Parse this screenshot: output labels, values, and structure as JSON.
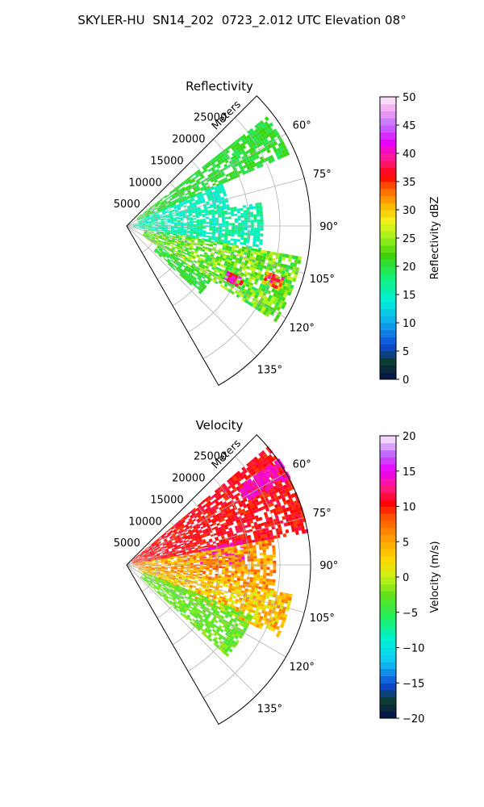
{
  "suptitle": "SKYLER-HU  SN14_202  0723_2.012 UTC Elevation 08°",
  "chart_data": [
    {
      "type": "heatmap",
      "projection": "polar-sector",
      "title": "Reflectivity",
      "range_label": "Meters",
      "range_ticks": [
        "5000",
        "10000",
        "15000",
        "20000",
        "25000"
      ],
      "range_tick_values": [
        5000,
        10000,
        15000,
        20000,
        25000
      ],
      "range_max": 30000,
      "azimuth_min": 45,
      "azimuth_max": 150,
      "azimuth_ticks": [
        "60°",
        "75°",
        "90°",
        "105°",
        "120°",
        "135°"
      ],
      "azimuth_tick_values": [
        60,
        75,
        90,
        105,
        120,
        135
      ],
      "grid": true,
      "colorbar": {
        "label": "Reflectivity dBZ",
        "range": [
          0,
          50
        ],
        "ticks": [
          "0",
          "5",
          "10",
          "15",
          "20",
          "25",
          "30",
          "35",
          "40",
          "45",
          "50"
        ],
        "tick_values": [
          0,
          5,
          10,
          15,
          20,
          25,
          30,
          35,
          40,
          45,
          50
        ]
      },
      "features": [
        {
          "az_from": 52,
          "az_to": 66,
          "r_from": 2000,
          "r_to": 29000,
          "value_from": 19,
          "value_to": 22
        },
        {
          "az_from": 66,
          "az_to": 80,
          "r_from": 2000,
          "r_to": 17000,
          "value_from": 13,
          "value_to": 17
        },
        {
          "az_from": 80,
          "az_to": 100,
          "r_from": 1000,
          "r_to": 22000,
          "value_from": 13,
          "value_to": 19
        },
        {
          "az_from": 100,
          "az_to": 122,
          "r_from": 3000,
          "r_to": 29000,
          "value_from": 19,
          "value_to": 27
        },
        {
          "az_from": 122,
          "az_to": 132,
          "r_from": 6000,
          "r_to": 16000,
          "value_from": 19,
          "value_to": 22
        },
        {
          "az_from": 114,
          "az_to": 118,
          "r_from": 18000,
          "r_to": 21000,
          "value_from": 35,
          "value_to": 45
        },
        {
          "az_from": 108,
          "az_to": 112,
          "r_from": 24000,
          "r_to": 27000,
          "value_from": 30,
          "value_to": 40
        }
      ]
    },
    {
      "type": "heatmap",
      "projection": "polar-sector",
      "title": "Velocity",
      "range_label": "Meters",
      "range_ticks": [
        "5000",
        "10000",
        "15000",
        "20000",
        "25000"
      ],
      "range_tick_values": [
        5000,
        10000,
        15000,
        20000,
        25000
      ],
      "range_max": 30000,
      "azimuth_min": 45,
      "azimuth_max": 150,
      "azimuth_ticks": [
        "60°",
        "75°",
        "90°",
        "105°",
        "120°",
        "135°"
      ],
      "azimuth_tick_values": [
        60,
        75,
        90,
        105,
        120,
        135
      ],
      "grid": true,
      "colorbar": {
        "label": "Velocity (m/s)",
        "range": [
          -20,
          20
        ],
        "ticks": [
          "−20",
          "−15",
          "−10",
          "−5",
          "0",
          "5",
          "10",
          "15",
          "20"
        ],
        "tick_values": [
          -20,
          -15,
          -10,
          -5,
          0,
          5,
          10,
          15,
          20
        ]
      },
      "features": [
        {
          "az_from": 50,
          "az_to": 80,
          "r_from": 1000,
          "r_to": 30000,
          "value_from": 9,
          "value_to": 12
        },
        {
          "az_from": 55,
          "az_to": 62,
          "r_from": 22000,
          "r_to": 30000,
          "value_from": 13,
          "value_to": 15
        },
        {
          "az_from": 78,
          "az_to": 90,
          "r_from": 12000,
          "r_to": 19000,
          "value_from": 13,
          "value_to": 15
        },
        {
          "az_from": 80,
          "az_to": 100,
          "r_from": 1000,
          "r_to": 24000,
          "value_from": 2,
          "value_to": 9
        },
        {
          "az_from": 100,
          "az_to": 115,
          "r_from": 2000,
          "r_to": 27000,
          "value_from": 0,
          "value_to": 7
        },
        {
          "az_from": 112,
          "az_to": 132,
          "r_from": 3000,
          "r_to": 22000,
          "value_from": -4,
          "value_to": -1
        }
      ]
    }
  ]
}
